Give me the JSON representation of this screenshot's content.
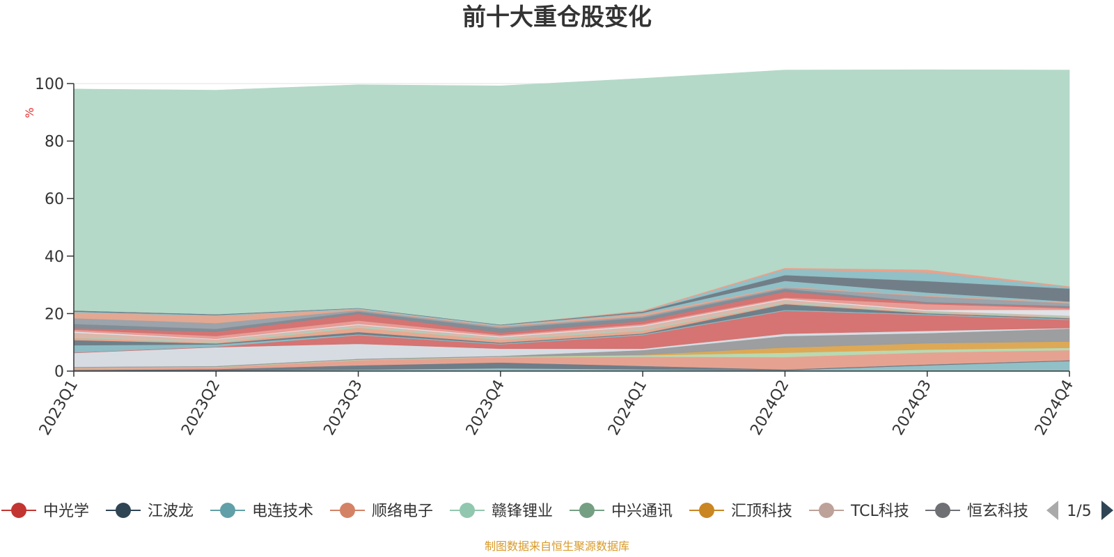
{
  "chart_data": {
    "type": "area",
    "stacked": true,
    "title": "前十大重仓股变化",
    "ylabel": "%",
    "ylim": [
      0,
      100
    ],
    "yticks": [
      0,
      20,
      40,
      60,
      80,
      100
    ],
    "grid": true,
    "categories": [
      "2023Q1",
      "2023Q2",
      "2023Q3",
      "2023Q4",
      "2024Q1",
      "2024Q2",
      "2024Q3",
      "2024Q4"
    ],
    "series": [
      {
        "values": [
          0.2,
          0.2,
          0.5,
          1.0,
          0.6,
          0.3,
          2.0,
          3.5
        ],
        "color": "#8fbfc6"
      },
      {
        "values": [
          0.2,
          0.5,
          1.5,
          2.0,
          1.2,
          0.3,
          0.3,
          0.3
        ],
        "color": "#6b7a86"
      },
      {
        "values": [
          0.6,
          0.6,
          1.8,
          1.8,
          3.2,
          4.3,
          4.2,
          3.5
        ],
        "color": "#e5a08f"
      },
      {
        "values": [
          0.2,
          0.2,
          0.2,
          0.2,
          0.5,
          1.5,
          1.0,
          0.8
        ],
        "color": "#b8d8b0"
      },
      {
        "values": [
          0.0,
          0.0,
          0.0,
          0.0,
          0.2,
          1.8,
          2.2,
          2.2
        ],
        "color": "#dca753"
      },
      {
        "values": [
          0.3,
          0.3,
          0.3,
          0.3,
          1.6,
          4.0,
          3.5,
          4.5
        ],
        "color": "#9a9c9e"
      },
      {
        "values": [
          4.8,
          6.5,
          5.2,
          2.5,
          0.5,
          0.8,
          0.8,
          0.2
        ],
        "color": "#d6dbe2"
      },
      {
        "values": [
          0.2,
          0.2,
          3.0,
          1.5,
          4.7,
          8.0,
          5.5,
          2.8
        ],
        "color": "#d4716f"
      },
      {
        "values": [
          2.5,
          0.8,
          0.3,
          0.3,
          0.3,
          0.3,
          0.3,
          0.3
        ],
        "color": "#8bbbc3"
      },
      {
        "values": [
          1.8,
          0.3,
          0.8,
          0.3,
          0.3,
          2.0,
          0.3,
          0.3
        ],
        "color": "#6c7c87"
      },
      {
        "values": [
          0.8,
          0.3,
          1.5,
          1.0,
          1.0,
          0.3,
          0.3,
          0.3
        ],
        "color": "#e8a68e"
      },
      {
        "values": [
          0.3,
          0.3,
          0.4,
          0.3,
          0.3,
          0.3,
          0.3,
          0.3
        ],
        "color": "#a3d3bd"
      },
      {
        "values": [
          1.5,
          0.8,
          0.6,
          0.6,
          1.2,
          1.0,
          0.3,
          0.3
        ],
        "color": "#d9b7aa"
      },
      {
        "values": [
          0.4,
          0.2,
          0.3,
          0.3,
          0.3,
          0.3,
          0.3,
          2.0
        ],
        "color": "#dfe2e8"
      },
      {
        "values": [
          0.6,
          1.0,
          1.2,
          0.5,
          0.5,
          0.4,
          2.0,
          0.5
        ],
        "color": "#e89a94"
      },
      {
        "values": [
          0.5,
          1.5,
          2.3,
          0.8,
          1.0,
          2.0,
          0.4,
          0.5
        ],
        "color": "#d4716f"
      },
      {
        "values": [
          1.5,
          1.0,
          0.8,
          1.5,
          1.2,
          1.0,
          0.3,
          0.3
        ],
        "color": "#7f8b94"
      },
      {
        "values": [
          2.0,
          2.0,
          0.5,
          0.5,
          0.5,
          0.5,
          2.0,
          1.0
        ],
        "color": "#9aa1a8"
      },
      {
        "values": [
          2.0,
          2.5,
          0.3,
          0.3,
          0.8,
          0.3,
          0.3,
          0.3
        ],
        "color": "#e2a690"
      },
      {
        "values": [
          0.3,
          0.3,
          0.3,
          0.3,
          0.4,
          2.0,
          1.0,
          0.3
        ],
        "color": "#8fbfc6"
      },
      {
        "values": [
          0.4,
          0.3,
          0.2,
          0.2,
          0.4,
          2.0,
          4.0,
          4.5
        ],
        "color": "#6f7b85"
      },
      {
        "values": [
          0.0,
          0.0,
          0.0,
          0.0,
          0.0,
          2.0,
          3.0,
          0.5
        ],
        "color": "#8fbfc6"
      },
      {
        "values": [
          0.0,
          0.0,
          0.0,
          0.0,
          0.4,
          0.5,
          1.0,
          0.3
        ],
        "color": "#e8a08a"
      },
      {
        "values": [
          77.0,
          77.9,
          77.6,
          83.0,
          80.7,
          68.8,
          69.5,
          75.2
        ],
        "color": "#b2d8c7"
      }
    ],
    "legend": {
      "position": "bottom",
      "page": "1/5",
      "items": [
        {
          "name": "中光学",
          "color": "#c23531"
        },
        {
          "name": "江波龙",
          "color": "#2f4554"
        },
        {
          "name": "电连技术",
          "color": "#61a0a8"
        },
        {
          "name": "顺络电子",
          "color": "#d48265"
        },
        {
          "name": "赣锋锂业",
          "color": "#91c7ae"
        },
        {
          "name": "中兴通讯",
          "color": "#749f83"
        },
        {
          "name": "汇顶科技",
          "color": "#ca8622"
        },
        {
          "name": "TCL科技",
          "color": "#bda29a"
        },
        {
          "name": "恒玄科技",
          "color": "#6e7074"
        }
      ]
    }
  },
  "source_note": "制图数据来自恒生聚源数据库"
}
